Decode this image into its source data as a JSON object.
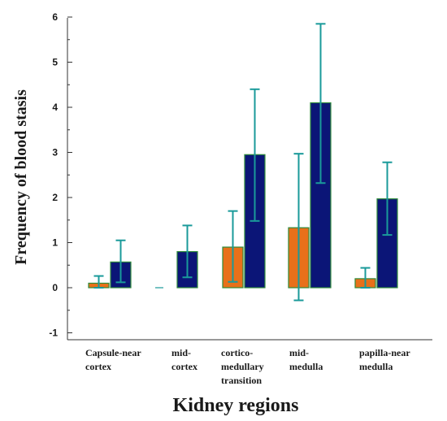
{
  "chart_data": {
    "type": "bar",
    "xlabel": "Kidney regions",
    "ylabel": "Frequency of blood stasis",
    "ylim": [
      -1,
      6
    ],
    "yticks": [
      -1,
      0,
      1,
      2,
      3,
      4,
      5,
      6
    ],
    "grid": false,
    "legend": "none",
    "categories": [
      [
        "Capsule-near",
        "cortex"
      ],
      [
        "mid-",
        "cortex"
      ],
      [
        "cortico-",
        "medullary",
        "transition"
      ],
      [
        "mid-",
        "medulla"
      ],
      [
        "papilla-near",
        "medulla"
      ]
    ],
    "series": [
      {
        "color": "#e8701a",
        "values": [
          0.1,
          0.0,
          0.9,
          1.33,
          0.2
        ],
        "err_low": [
          0.0,
          0.0,
          0.13,
          -0.28,
          0.0
        ],
        "err_high": [
          0.26,
          0.0,
          1.7,
          2.97,
          0.44
        ]
      },
      {
        "color": "#0b1577",
        "values": [
          0.57,
          0.8,
          2.95,
          4.1,
          1.97
        ],
        "err_low": [
          0.12,
          0.23,
          1.48,
          2.32,
          1.17
        ],
        "err_high": [
          1.05,
          1.38,
          4.4,
          5.85,
          2.78
        ]
      }
    ],
    "error_bar_color": "#1a9a9a",
    "bar_outline_color": "#2e8b3a"
  }
}
